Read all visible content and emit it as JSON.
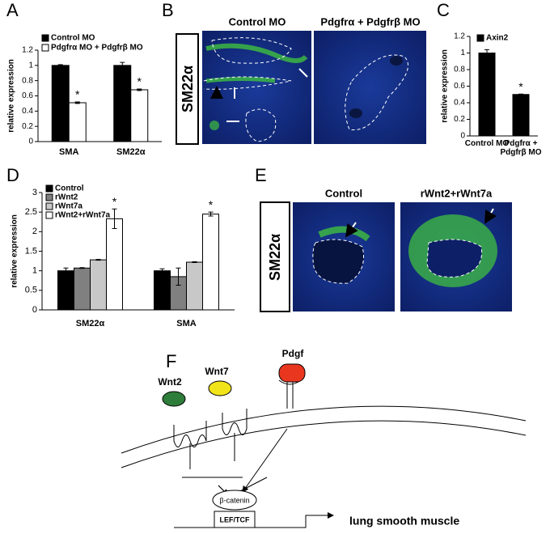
{
  "panels": [
    "A",
    "B",
    "C",
    "D",
    "E",
    "F"
  ],
  "chart_data": [
    {
      "type": "bar",
      "y_label": "relative expression",
      "categories": [
        "SMA",
        "SM22α"
      ],
      "ylim": [
        0,
        1.2
      ],
      "yticks": [
        0,
        0.2,
        0.4,
        0.6,
        0.8,
        1,
        1.2
      ],
      "series": [
        {
          "name": "Control MO",
          "color": "#000000",
          "values": [
            1.0,
            1.0
          ],
          "errors": [
            0.01,
            0.04
          ],
          "marks": [
            null,
            null
          ]
        },
        {
          "name": "Pdgfrα MO + Pdgfrβ MO",
          "color": "#ffffff",
          "values": [
            0.51,
            0.68
          ],
          "errors": [
            0.01,
            0.01
          ],
          "marks": [
            "*",
            "*"
          ]
        }
      ]
    },
    {
      "type": "bar",
      "y_label": "relative expression",
      "categories": [
        "Control MO",
        "Pdgfrα + Pdgfrβ MO"
      ],
      "ylim": [
        0,
        1.2
      ],
      "yticks": [
        0,
        0.2,
        0.4,
        0.6,
        0.8,
        1,
        1.2
      ],
      "series": [
        {
          "name": "Axin2",
          "color": "#000000",
          "values": [
            1.0,
            0.5
          ],
          "errors": [
            0.04,
            0.005
          ],
          "marks": [
            null,
            "*"
          ]
        }
      ]
    },
    {
      "type": "bar",
      "y_label": "relative expression",
      "categories": [
        "SM22α",
        "SMA"
      ],
      "ylim": [
        0,
        3
      ],
      "yticks": [
        0,
        0.5,
        1,
        1.5,
        2,
        2.5,
        3
      ],
      "series": [
        {
          "name": "Control",
          "color": "#000000",
          "values": [
            1.0,
            1.0
          ],
          "errors": [
            0.07,
            0.05
          ],
          "marks": [
            null,
            null
          ]
        },
        {
          "name": "rWnt2",
          "color": "#808080",
          "values": [
            1.07,
            0.85
          ],
          "errors": [
            0.01,
            0.22
          ],
          "marks": [
            null,
            null
          ]
        },
        {
          "name": "rWnt7a",
          "color": "#c8c8c8",
          "values": [
            1.28,
            1.22
          ],
          "errors": [
            0.01,
            0.01
          ],
          "marks": [
            null,
            null
          ]
        },
        {
          "name": "rWnt2+rWnt7a",
          "color": "#ffffff",
          "values": [
            2.33,
            2.45
          ],
          "errors": [
            0.25,
            0.05
          ],
          "marks": [
            "*",
            "*"
          ]
        }
      ]
    }
  ],
  "panel_b": {
    "stain": "SM22α",
    "columns": [
      "Control MO",
      "Pdgfrα + Pdgfrβ MO"
    ]
  },
  "panel_e": {
    "stain": "SM22α",
    "columns": [
      "Control",
      "rWnt2+rWnt7a"
    ]
  },
  "panel_f": {
    "labels": [
      "Wnt2",
      "Wnt7",
      "Pdgf",
      "β-catenin",
      "LEF/TCF",
      "lung smooth muscle"
    ]
  }
}
